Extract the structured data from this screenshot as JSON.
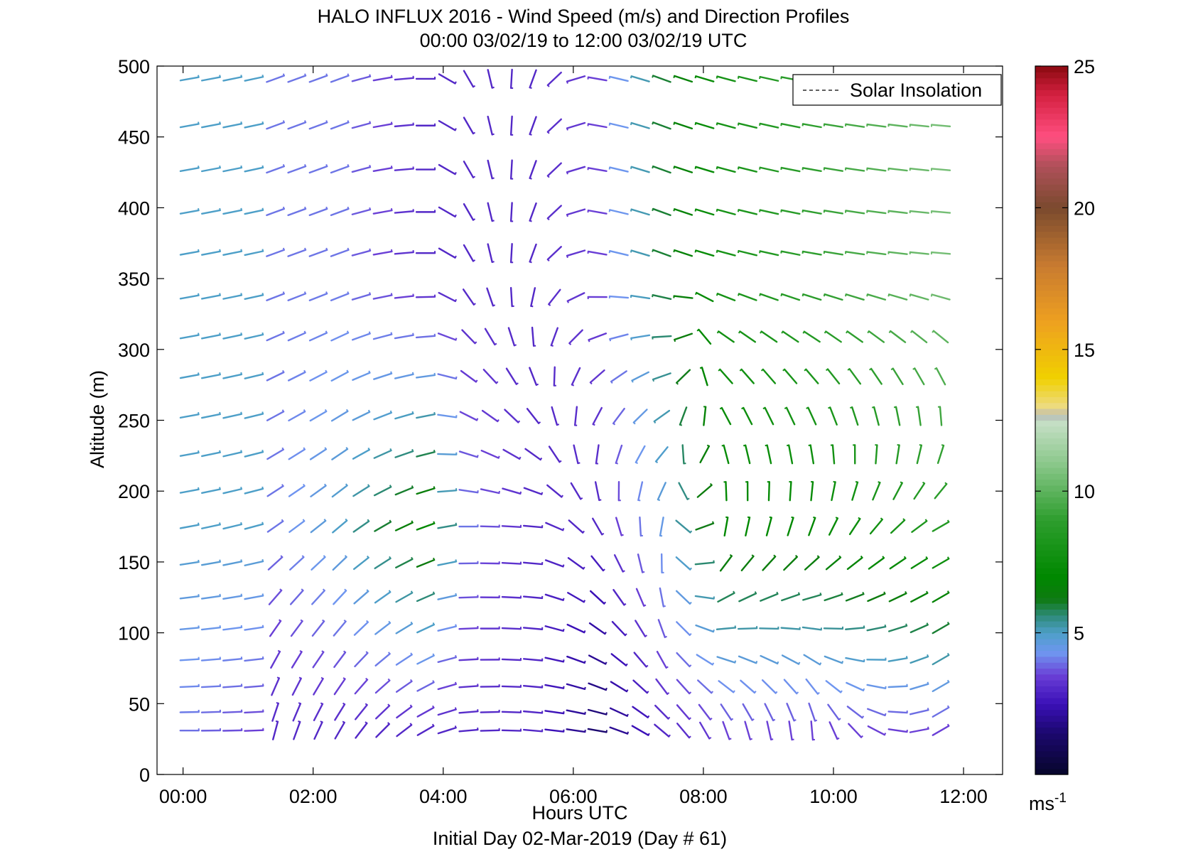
{
  "chart_data": {
    "type": "vector-field",
    "title": "HALO INFLUX 2016 - Wind Speed (m/s) and Direction Profiles",
    "subtitle": "00:00 03/02/19 to 12:00 03/02/19  UTC",
    "xlabel": "Hours UTC",
    "ylabel": "Altitude (m)",
    "footer": "Initial Day 02-Mar-2019 (Day # 61)",
    "xlim": [
      -0.4,
      12.6
    ],
    "ylim": [
      0,
      500
    ],
    "x_ticks": [
      0,
      2,
      4,
      6,
      8,
      10,
      12
    ],
    "x_tick_labels": [
      "00:00",
      "02:00",
      "04:00",
      "06:00",
      "08:00",
      "10:00",
      "12:00"
    ],
    "y_ticks": [
      0,
      50,
      100,
      150,
      200,
      250,
      300,
      350,
      400,
      450,
      500
    ],
    "y_tick_labels": [
      "0",
      "50",
      "100",
      "150",
      "200",
      "250",
      "300",
      "350",
      "400",
      "450",
      "500"
    ],
    "legend": {
      "entries": [
        "Solar Insolation"
      ],
      "placement": "top-right"
    },
    "colorbar": {
      "ticks": [
        5,
        10,
        15,
        20,
        25
      ],
      "tick_labels": [
        "5",
        "10",
        "15",
        "20",
        "25"
      ],
      "unit_label": "ms",
      "unit_exponent": "-1",
      "range": [
        0,
        25
      ]
    },
    "times_hours": [
      0.1,
      0.43,
      0.76,
      1.09,
      1.42,
      1.75,
      2.08,
      2.41,
      2.74,
      3.07,
      3.4,
      3.73,
      4.06,
      4.39,
      4.72,
      5.05,
      5.38,
      5.71,
      6.04,
      6.37,
      6.7,
      7.03,
      7.36,
      7.69,
      8.02,
      8.35,
      8.68,
      9.01,
      9.34,
      9.67,
      10.0,
      10.33,
      10.66,
      10.99,
      11.32,
      11.65
    ],
    "altitudes_m": [
      31,
      44,
      62,
      81,
      103,
      125,
      149,
      175,
      200,
      226,
      253,
      281,
      309,
      337,
      368,
      397,
      427,
      458,
      491
    ],
    "keyframes": [
      {
        "t": 0.0,
        "low": {
          "d": 270,
          "s": 4.0
        },
        "mid": {
          "d": 260,
          "s": 5.0
        },
        "high": {
          "d": 260,
          "s": 5.0
        }
      },
      {
        "t": 1.09,
        "low": {
          "d": 268,
          "s": 3.5
        },
        "mid": {
          "d": 255,
          "s": 5.0
        },
        "high": {
          "d": 258,
          "s": 5.0
        }
      },
      {
        "t": 1.42,
        "low": {
          "d": 195,
          "s": 3.0
        },
        "mid": {
          "d": 235,
          "s": 4.0
        },
        "high": {
          "d": 250,
          "s": 4.0
        }
      },
      {
        "t": 2.41,
        "low": {
          "d": 210,
          "s": 3.0
        },
        "mid": {
          "d": 230,
          "s": 5.0
        },
        "high": {
          "d": 250,
          "s": 4.0
        }
      },
      {
        "t": 3.73,
        "low": {
          "d": 240,
          "s": 3.0
        },
        "mid": {
          "d": 250,
          "s": 7.0
        },
        "high": {
          "d": 270,
          "s": 3.0
        }
      },
      {
        "t": 4.39,
        "low": {
          "d": 265,
          "s": 3.0
        },
        "mid": {
          "d": 270,
          "s": 4.0
        },
        "high": {
          "d": 330,
          "s": 3.0
        }
      },
      {
        "t": 5.38,
        "low": {
          "d": 275,
          "s": 3.0
        },
        "mid": {
          "d": 275,
          "s": 3.0
        },
        "high": {
          "d": 20,
          "s": 3.0
        }
      },
      {
        "t": 6.37,
        "low": {
          "d": 280,
          "s": 1.5
        },
        "mid": {
          "d": 330,
          "s": 3.0
        },
        "high": {
          "d": 100,
          "s": 3.5
        }
      },
      {
        "t": 7.36,
        "low": {
          "d": 310,
          "s": 3.0
        },
        "mid": {
          "d": 10,
          "s": 4.5
        },
        "high": {
          "d": 110,
          "s": 6.0
        }
      },
      {
        "t": 8.35,
        "low": {
          "d": 340,
          "s": 3.5
        },
        "mid": {
          "d": 190,
          "s": 7.0
        },
        "high": {
          "d": 105,
          "s": 8.0
        }
      },
      {
        "t": 9.67,
        "low": {
          "d": 355,
          "s": 3.5
        },
        "mid": {
          "d": 200,
          "s": 7.0
        },
        "high": {
          "d": 100,
          "s": 9.0
        }
      },
      {
        "t": 11.65,
        "low": {
          "d": 240,
          "s": 3.5
        },
        "mid": {
          "d": 240,
          "s": 8.5
        },
        "high": {
          "d": 95,
          "s": 10.5
        }
      }
    ],
    "altitude_blend_m": [
      31,
      175,
      350,
      491
    ],
    "colors": {
      "axis": "#000000",
      "background": "#ffffff",
      "colormap_stops": [
        {
          "v": 0.0,
          "c": "#06062a"
        },
        {
          "v": 1.5,
          "c": "#1c0870"
        },
        {
          "v": 2.5,
          "c": "#3b10b8"
        },
        {
          "v": 3.5,
          "c": "#6a3fd6"
        },
        {
          "v": 4.3,
          "c": "#6f96f0"
        },
        {
          "v": 5.0,
          "c": "#4d9fc8"
        },
        {
          "v": 5.6,
          "c": "#2e8a7a"
        },
        {
          "v": 6.2,
          "c": "#0e7a10"
        },
        {
          "v": 7.0,
          "c": "#008800"
        },
        {
          "v": 9.0,
          "c": "#2e9e2e"
        },
        {
          "v": 11.0,
          "c": "#8cc88c"
        },
        {
          "v": 12.5,
          "c": "#c8e0c8"
        },
        {
          "v": 12.7,
          "c": "#b0b0b0"
        },
        {
          "v": 12.9,
          "c": "#eddc8c"
        },
        {
          "v": 14.0,
          "c": "#f0d000"
        },
        {
          "v": 16.0,
          "c": "#eea020"
        },
        {
          "v": 18.0,
          "c": "#c77a30"
        },
        {
          "v": 20.0,
          "c": "#7a4a2e"
        },
        {
          "v": 21.5,
          "c": "#b0505a"
        },
        {
          "v": 22.5,
          "c": "#ff4f80"
        },
        {
          "v": 24.0,
          "c": "#d42040"
        },
        {
          "v": 25.0,
          "c": "#8a0a10"
        }
      ]
    }
  }
}
